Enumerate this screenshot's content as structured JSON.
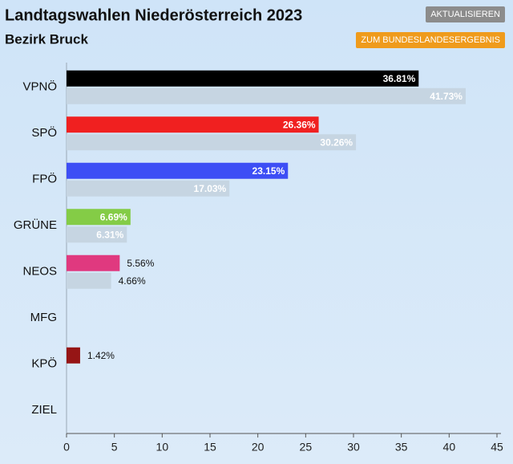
{
  "chart_data": {
    "type": "bar",
    "orientation": "horizontal",
    "title": "Landtagswahlen Niederösterreich 2023",
    "subtitle": "Bezirk Bruck",
    "categories": [
      "VPNÖ",
      "SPÖ",
      "FPÖ",
      "GRÜNE",
      "NEOS",
      "MFG",
      "KPÖ",
      "ZIEL"
    ],
    "series": [
      {
        "colors": [
          "#000000",
          "#f02020",
          "#3d4ef5",
          "#84cc46",
          "#e0397f",
          null,
          "#961515",
          null
        ],
        "values": [
          36.81,
          26.36,
          23.15,
          6.69,
          5.56,
          null,
          1.42,
          null
        ],
        "value_labels": [
          "36.81%",
          "26.36%",
          "23.15%",
          "6.69%",
          "5.56%",
          null,
          "1.42%",
          null
        ]
      },
      {
        "color": "#c6d5e2",
        "values": [
          41.73,
          30.26,
          17.03,
          6.31,
          4.66,
          null,
          null,
          null
        ],
        "value_labels": [
          "41.73%",
          "30.26%",
          "17.03%",
          "6.31%",
          "4.66%",
          null,
          null,
          null
        ]
      }
    ],
    "xlim": [
      0,
      45
    ],
    "xticks": [
      0,
      5,
      10,
      15,
      20,
      25,
      30,
      35,
      40,
      45
    ],
    "grid": false
  },
  "buttons": [
    "AKTUALISIEREN",
    "ZUM BUNDESLANDESERGEBNIS"
  ]
}
